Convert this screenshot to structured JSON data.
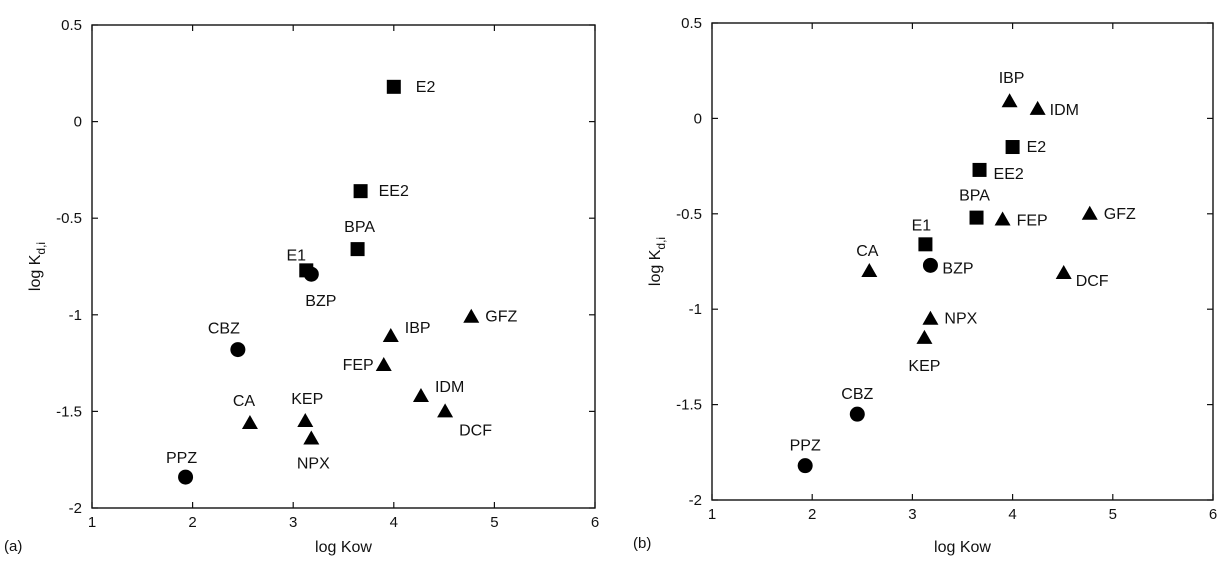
{
  "chart_data": [
    {
      "type": "scatter",
      "panel": "(a)",
      "xlabel": "log Kow",
      "ylabel": "log K",
      "ylabel_sub": "d,i",
      "xlim": [
        1,
        6
      ],
      "ylim": [
        -2,
        0.5
      ],
      "xticks": [
        "1",
        "2",
        "3",
        "4",
        "5",
        "6"
      ],
      "yticks": [
        "0.5",
        "0",
        "-0.5",
        "-1",
        "-1.5",
        "-2"
      ],
      "grid": false,
      "points": [
        {
          "label": "E2",
          "x": 4.0,
          "y": 0.18,
          "marker": "square"
        },
        {
          "label": "EE2",
          "x": 3.67,
          "y": -0.36,
          "marker": "square"
        },
        {
          "label": "BPA",
          "x": 3.64,
          "y": -0.66,
          "marker": "square"
        },
        {
          "label": "E1",
          "x": 3.13,
          "y": -0.77,
          "marker": "square"
        },
        {
          "label": "BZP",
          "x": 3.18,
          "y": -0.79,
          "marker": "circle"
        },
        {
          "label": "CBZ",
          "x": 2.45,
          "y": -1.18,
          "marker": "circle"
        },
        {
          "label": "PPZ",
          "x": 1.93,
          "y": -1.84,
          "marker": "circle"
        },
        {
          "label": "IBP",
          "x": 3.97,
          "y": -1.11,
          "marker": "triangle"
        },
        {
          "label": "GFZ",
          "x": 4.77,
          "y": -1.01,
          "marker": "triangle"
        },
        {
          "label": "FEP",
          "x": 3.9,
          "y": -1.26,
          "marker": "triangle"
        },
        {
          "label": "IDM",
          "x": 4.27,
          "y": -1.42,
          "marker": "triangle"
        },
        {
          "label": "DCF",
          "x": 4.51,
          "y": -1.5,
          "marker": "triangle"
        },
        {
          "label": "CA",
          "x": 2.57,
          "y": -1.56,
          "marker": "triangle"
        },
        {
          "label": "KEP",
          "x": 3.12,
          "y": -1.55,
          "marker": "triangle"
        },
        {
          "label": "NPX",
          "x": 3.18,
          "y": -1.64,
          "marker": "triangle"
        }
      ]
    },
    {
      "type": "scatter",
      "panel": "(b)",
      "xlabel": "log Kow",
      "ylabel": "log K",
      "ylabel_sub": "d,i",
      "xlim": [
        1,
        6
      ],
      "ylim": [
        -2,
        0.5
      ],
      "xticks": [
        "1",
        "2",
        "3",
        "4",
        "5",
        "6"
      ],
      "yticks": [
        "0.5",
        "0",
        "-0.5",
        "-1",
        "-1.5",
        "-2"
      ],
      "grid": false,
      "points": [
        {
          "label": "IBP",
          "x": 3.97,
          "y": 0.09,
          "marker": "triangle"
        },
        {
          "label": "IDM",
          "x": 4.25,
          "y": 0.05,
          "marker": "triangle"
        },
        {
          "label": "E2",
          "x": 4.0,
          "y": -0.15,
          "marker": "square"
        },
        {
          "label": "EE2",
          "x": 3.67,
          "y": -0.27,
          "marker": "square"
        },
        {
          "label": "BPA",
          "x": 3.64,
          "y": -0.52,
          "marker": "square"
        },
        {
          "label": "FEP",
          "x": 3.9,
          "y": -0.53,
          "marker": "triangle"
        },
        {
          "label": "GFZ",
          "x": 4.77,
          "y": -0.5,
          "marker": "triangle"
        },
        {
          "label": "E1",
          "x": 3.13,
          "y": -0.66,
          "marker": "square"
        },
        {
          "label": "CA",
          "x": 2.57,
          "y": -0.8,
          "marker": "triangle"
        },
        {
          "label": "BZP",
          "x": 3.18,
          "y": -0.77,
          "marker": "circle"
        },
        {
          "label": "DCF",
          "x": 4.51,
          "y": -0.81,
          "marker": "triangle"
        },
        {
          "label": "NPX",
          "x": 3.18,
          "y": -1.05,
          "marker": "triangle"
        },
        {
          "label": "KEP",
          "x": 3.12,
          "y": -1.15,
          "marker": "triangle"
        },
        {
          "label": "CBZ",
          "x": 2.45,
          "y": -1.55,
          "marker": "circle"
        },
        {
          "label": "PPZ",
          "x": 1.93,
          "y": -1.82,
          "marker": "circle"
        }
      ]
    }
  ]
}
